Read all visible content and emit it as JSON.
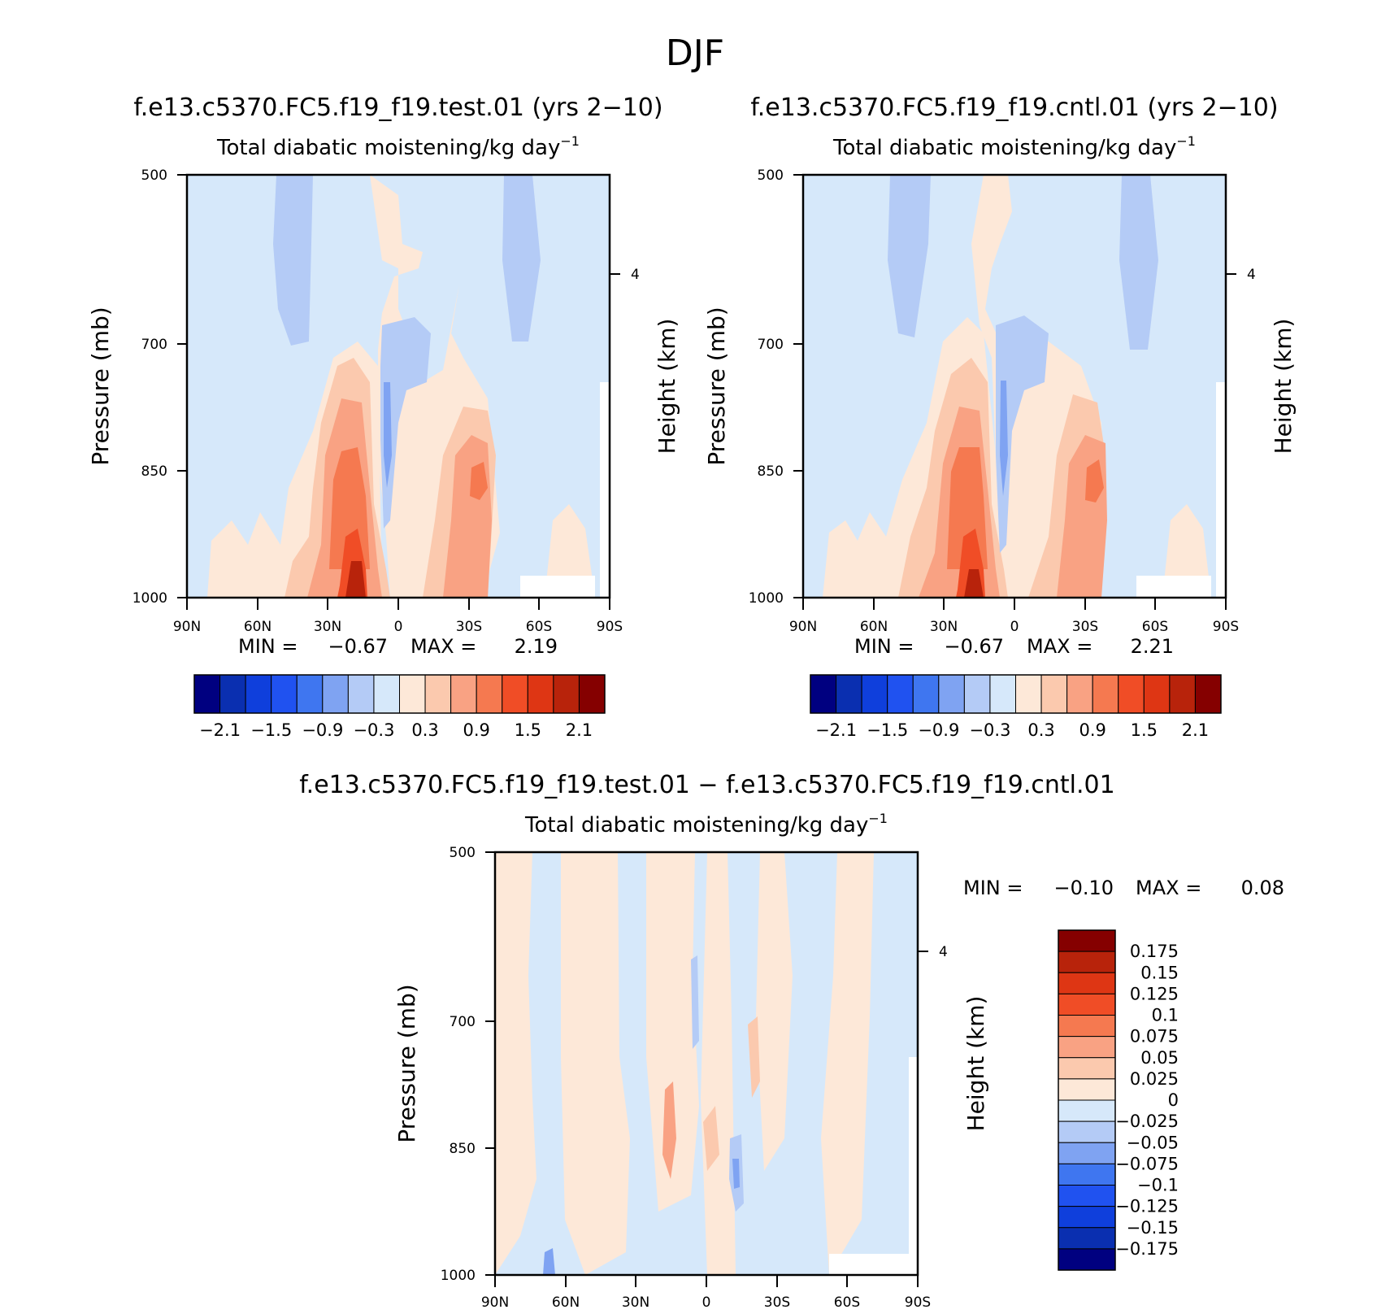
{
  "figure": {
    "title": "DJF",
    "colors": {
      "full": [
        "#000080",
        "#0a2fb0",
        "#0f3fdc",
        "#2052f0",
        "#3f76f0",
        "#7fa3f2",
        "#b4cbf6",
        "#d6e8fa",
        "#fde8d8",
        "#fbc9ae",
        "#f9a283",
        "#f57950",
        "#f04d26",
        "#de3614",
        "#b8230b",
        "#850000"
      ],
      "diff": [
        "#850000",
        "#b8230b",
        "#de3614",
        "#f04d26",
        "#f57950",
        "#f9a283",
        "#fbc9ae",
        "#fde8d8",
        "#d6e8fa",
        "#b4cbf6",
        "#7fa3f2",
        "#3f76f0",
        "#2052f0",
        "#0f3fdc",
        "#0a2fb0",
        "#000080"
      ]
    }
  },
  "panels": {
    "test": {
      "case": "f.e13.c5370.FC5.f19_f19.test.01 (yrs 2−10)",
      "variable": "Total diabatic moistening/kg day",
      "exponent": "−1",
      "ylabel": "Pressure (mb)",
      "y2label": "Height (km)",
      "min_label": "MIN =",
      "min": "−0.67",
      "max_label": "MAX =",
      "max": "2.19",
      "colorbar_labels": [
        "−2.1",
        "−1.5",
        "−0.9",
        "−0.3",
        "0.3",
        "0.9",
        "1.5",
        "2.1"
      ]
    },
    "cntl": {
      "case": "f.e13.c5370.FC5.f19_f19.cntl.01 (yrs 2−10)",
      "variable": "Total diabatic moistening/kg day",
      "exponent": "−1",
      "ylabel": "Pressure (mb)",
      "y2label": "Height (km)",
      "min_label": "MIN =",
      "min": "−0.67",
      "max_label": "MAX =",
      "max": "2.21",
      "colorbar_labels": [
        "−2.1",
        "−1.5",
        "−0.9",
        "−0.3",
        "0.3",
        "0.9",
        "1.5",
        "2.1"
      ]
    },
    "diff": {
      "case": "f.e13.c5370.FC5.f19_f19.test.01 − f.e13.c5370.FC5.f19_f19.cntl.01",
      "variable": "Total diabatic moistening/kg day",
      "exponent": "−1",
      "ylabel": "Pressure (mb)",
      "y2label": "Height (km)",
      "min_label": "MIN =",
      "min": "−0.10",
      "max_label": "MAX =",
      "max": "0.08",
      "colorbar_labels": [
        "0.175",
        "0.15",
        "0.125",
        "0.1",
        "0.075",
        "0.05",
        "0.025",
        "0",
        "−0.025",
        "−0.05",
        "−0.075",
        "−0.1",
        "−0.125",
        "−0.15",
        "−0.175"
      ]
    }
  },
  "chart_data": [
    {
      "type": "heatmap",
      "title": "f.e13.c5370.FC5.f19_f19.test.01 (yrs 2−10)",
      "xlabel": "",
      "ylabel": "Pressure (mb)",
      "x_ticks": [
        "90N",
        "60N",
        "30N",
        "0",
        "30S",
        "60S",
        "90S"
      ],
      "y_ticks": [
        "500",
        "700",
        "850",
        "1000"
      ],
      "y2_ticks": [
        "4"
      ],
      "xlim": [
        90,
        -90
      ],
      "ylim": [
        1000,
        500
      ],
      "contour_levels": [
        -2.1,
        -1.8,
        -1.5,
        -1.2,
        -0.9,
        -0.6,
        -0.3,
        0,
        0.3,
        0.6,
        0.9,
        1.2,
        1.5,
        1.8,
        2.1
      ],
      "min": -0.67,
      "max": 2.19
    },
    {
      "type": "heatmap",
      "title": "f.e13.c5370.FC5.f19_f19.cntl.01 (yrs 2−10)",
      "xlabel": "",
      "ylabel": "Pressure (mb)",
      "x_ticks": [
        "90N",
        "60N",
        "30N",
        "0",
        "30S",
        "60S",
        "90S"
      ],
      "y_ticks": [
        "500",
        "700",
        "850",
        "1000"
      ],
      "y2_ticks": [
        "4"
      ],
      "xlim": [
        90,
        -90
      ],
      "ylim": [
        1000,
        500
      ],
      "contour_levels": [
        -2.1,
        -1.8,
        -1.5,
        -1.2,
        -0.9,
        -0.6,
        -0.3,
        0,
        0.3,
        0.6,
        0.9,
        1.2,
        1.5,
        1.8,
        2.1
      ],
      "min": -0.67,
      "max": 2.21
    },
    {
      "type": "heatmap",
      "title": "f.e13.c5370.FC5.f19_f19.test.01 − f.e13.c5370.FC5.f19_f19.cntl.01",
      "xlabel": "",
      "ylabel": "Pressure (mb)",
      "x_ticks": [
        "90N",
        "60N",
        "30N",
        "0",
        "30S",
        "60S",
        "90S"
      ],
      "y_ticks": [
        "500",
        "700",
        "850",
        "1000"
      ],
      "y2_ticks": [
        "4"
      ],
      "xlim": [
        90,
        -90
      ],
      "ylim": [
        1000,
        500
      ],
      "contour_levels": [
        -0.175,
        -0.15,
        -0.125,
        -0.1,
        -0.075,
        -0.05,
        -0.025,
        0,
        0.025,
        0.05,
        0.075,
        0.1,
        0.125,
        0.15,
        0.175
      ],
      "min": -0.1,
      "max": 0.08
    }
  ]
}
